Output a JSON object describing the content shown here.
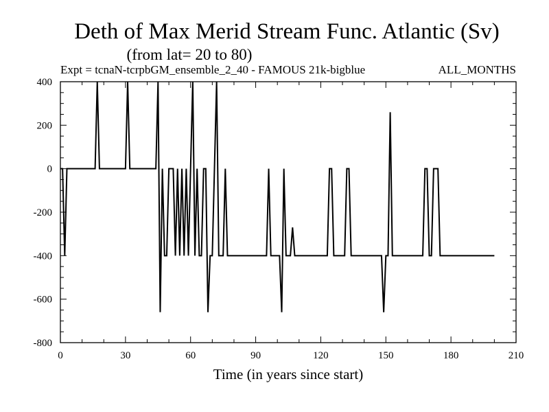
{
  "chart_data": {
    "type": "line",
    "title": "Deth of Max Merid Stream Func. Atlantic (Sv)",
    "subtitle": "(from lat= 20 to 80)",
    "expt_label": "Expt = tcnaN-tcrpbGM_ensemble_2_40 - FAMOUS 21k-bigblue",
    "months_label": "ALL_MONTHS",
    "xlabel": "Time (in years since start)",
    "ylabel": "",
    "xlim": [
      0,
      210
    ],
    "ylim": [
      -800,
      400
    ],
    "xticks": [
      0,
      30,
      60,
      90,
      120,
      150,
      180,
      210
    ],
    "yticks": [
      -800,
      -600,
      -400,
      -200,
      0,
      200,
      400
    ],
    "x_minor_step": 10,
    "y_minor_step": 50,
    "grid": false,
    "series": [
      {
        "color": "#000000",
        "points": [
          [
            0,
            0
          ],
          [
            1,
            0
          ],
          [
            2,
            -400
          ],
          [
            3,
            0
          ],
          [
            4,
            0
          ],
          [
            5,
            0
          ],
          [
            16,
            0
          ],
          [
            17,
            400
          ],
          [
            18,
            0
          ],
          [
            30,
            0
          ],
          [
            31,
            400
          ],
          [
            32,
            0
          ],
          [
            44,
            0
          ],
          [
            45,
            400
          ],
          [
            46,
            -660
          ],
          [
            47,
            0
          ],
          [
            48,
            -400
          ],
          [
            49,
            -400
          ],
          [
            50,
            0
          ],
          [
            52,
            0
          ],
          [
            53,
            -400
          ],
          [
            54,
            0
          ],
          [
            55,
            -400
          ],
          [
            56,
            0
          ],
          [
            57,
            -400
          ],
          [
            58,
            0
          ],
          [
            59,
            -400
          ],
          [
            60,
            0
          ],
          [
            61,
            400
          ],
          [
            62,
            -400
          ],
          [
            63,
            0
          ],
          [
            64,
            -400
          ],
          [
            65,
            -400
          ],
          [
            66,
            0
          ],
          [
            67,
            0
          ],
          [
            68,
            -660
          ],
          [
            69,
            -400
          ],
          [
            70,
            -400
          ],
          [
            72,
            400
          ],
          [
            73,
            -400
          ],
          [
            75,
            -400
          ],
          [
            76,
            0
          ],
          [
            77,
            -400
          ],
          [
            95,
            -400
          ],
          [
            96,
            0
          ],
          [
            97,
            -400
          ],
          [
            101,
            -400
          ],
          [
            102,
            -660
          ],
          [
            103,
            0
          ],
          [
            104,
            -400
          ],
          [
            106,
            -400
          ],
          [
            107,
            -270
          ],
          [
            108,
            -400
          ],
          [
            123,
            -400
          ],
          [
            124,
            0
          ],
          [
            125,
            0
          ],
          [
            126,
            -400
          ],
          [
            131,
            -400
          ],
          [
            132,
            0
          ],
          [
            133,
            0
          ],
          [
            134,
            -400
          ],
          [
            148,
            -400
          ],
          [
            149,
            -660
          ],
          [
            150,
            -400
          ],
          [
            151,
            -400
          ],
          [
            152,
            260
          ],
          [
            153,
            -400
          ],
          [
            167,
            -400
          ],
          [
            168,
            0
          ],
          [
            169,
            0
          ],
          [
            170,
            -400
          ],
          [
            171,
            -400
          ],
          [
            172,
            0
          ],
          [
            174,
            0
          ],
          [
            175,
            -400
          ],
          [
            200,
            -400
          ]
        ]
      }
    ]
  }
}
